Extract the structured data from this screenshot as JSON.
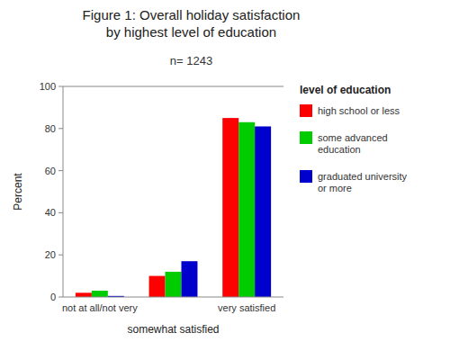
{
  "chart_data": {
    "type": "bar",
    "title": "Figure 1: Overall holiday satisfaction\nby highest level of education",
    "subtitle": "n= 1243",
    "categories": [
      "not at all/not very",
      null,
      "very satisfied"
    ],
    "xlabel": "somewhat satisfied",
    "ylabel": "Percent",
    "ylim": [
      0,
      100
    ],
    "yticks": [
      0,
      20,
      40,
      60,
      80,
      100
    ],
    "grid": false,
    "legend": "right",
    "legend_title": "level of education",
    "series": [
      {
        "name": "high school or less",
        "color": "#ff0000",
        "values": [
          2,
          10,
          85
        ]
      },
      {
        "name": "some advanced\neducation",
        "color": "#00cc00",
        "values": [
          3,
          12,
          83
        ]
      },
      {
        "name": "graduated university\nor more",
        "color": "#0000cc",
        "values": [
          0.5,
          17,
          81
        ]
      }
    ]
  }
}
